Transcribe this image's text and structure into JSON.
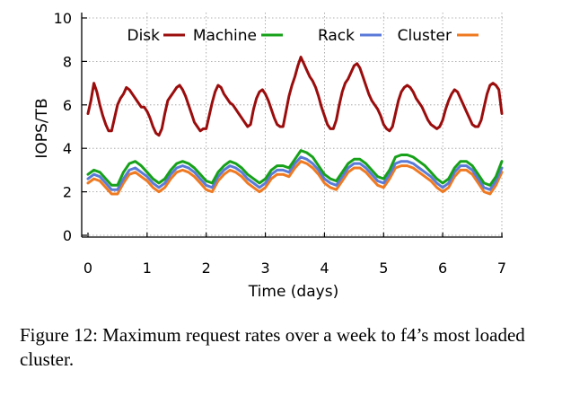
{
  "chart_data": {
    "type": "line",
    "xlabel": "Time (days)",
    "ylabel": "IOPS/TB",
    "xlim": [
      0,
      7
    ],
    "ylim": [
      0,
      10
    ],
    "x_ticks": [
      0,
      1,
      2,
      3,
      4,
      5,
      6,
      7
    ],
    "y_ticks": [
      0,
      2,
      4,
      6,
      8,
      10
    ],
    "grid": true,
    "legend_position": "top",
    "series": [
      {
        "name": "Disk",
        "color": "#9b0d0d",
        "x": [
          0,
          0.05,
          0.1,
          0.15,
          0.2,
          0.25,
          0.3,
          0.35,
          0.4,
          0.45,
          0.5,
          0.55,
          0.6,
          0.65,
          0.7,
          0.75,
          0.8,
          0.85,
          0.9,
          0.95,
          1,
          1.05,
          1.1,
          1.15,
          1.2,
          1.25,
          1.3,
          1.35,
          1.4,
          1.45,
          1.5,
          1.55,
          1.6,
          1.65,
          1.7,
          1.75,
          1.8,
          1.85,
          1.9,
          1.95,
          2,
          2.05,
          2.1,
          2.15,
          2.2,
          2.25,
          2.3,
          2.35,
          2.4,
          2.45,
          2.5,
          2.55,
          2.6,
          2.65,
          2.7,
          2.75,
          2.8,
          2.85,
          2.9,
          2.95,
          3,
          3.05,
          3.1,
          3.15,
          3.2,
          3.25,
          3.3,
          3.35,
          3.4,
          3.45,
          3.5,
          3.55,
          3.6,
          3.65,
          3.7,
          3.75,
          3.8,
          3.85,
          3.9,
          3.95,
          4,
          4.05,
          4.1,
          4.15,
          4.2,
          4.25,
          4.3,
          4.35,
          4.4,
          4.45,
          4.5,
          4.55,
          4.6,
          4.65,
          4.7,
          4.75,
          4.8,
          4.85,
          4.9,
          4.95,
          5,
          5.05,
          5.1,
          5.15,
          5.2,
          5.25,
          5.3,
          5.35,
          5.4,
          5.45,
          5.5,
          5.55,
          5.6,
          5.65,
          5.7,
          5.75,
          5.8,
          5.85,
          5.9,
          5.95,
          6,
          6.05,
          6.1,
          6.15,
          6.2,
          6.25,
          6.3,
          6.35,
          6.4,
          6.45,
          6.5,
          6.55,
          6.6,
          6.65,
          6.7,
          6.75,
          6.8,
          6.85,
          6.9,
          6.95,
          7
        ],
        "y": [
          5.6,
          6.2,
          7.0,
          6.6,
          6.0,
          5.5,
          5.1,
          4.8,
          4.8,
          5.4,
          6.0,
          6.3,
          6.5,
          6.8,
          6.7,
          6.5,
          6.3,
          6.1,
          5.9,
          5.9,
          5.7,
          5.4,
          5.0,
          4.7,
          4.6,
          4.9,
          5.6,
          6.2,
          6.4,
          6.6,
          6.8,
          6.9,
          6.7,
          6.4,
          6.0,
          5.6,
          5.2,
          5.0,
          4.8,
          4.9,
          4.9,
          5.5,
          6.1,
          6.6,
          6.9,
          6.8,
          6.5,
          6.3,
          6.1,
          6.0,
          5.8,
          5.6,
          5.4,
          5.2,
          5.0,
          5.1,
          5.8,
          6.3,
          6.6,
          6.7,
          6.5,
          6.2,
          5.8,
          5.4,
          5.1,
          5.0,
          5.0,
          5.7,
          6.4,
          6.9,
          7.3,
          7.8,
          8.2,
          7.9,
          7.6,
          7.3,
          7.1,
          6.8,
          6.4,
          5.9,
          5.5,
          5.1,
          4.9,
          4.9,
          5.3,
          6.0,
          6.6,
          7.0,
          7.2,
          7.5,
          7.8,
          7.9,
          7.7,
          7.3,
          6.9,
          6.5,
          6.2,
          6.0,
          5.8,
          5.5,
          5.1,
          4.9,
          4.8,
          5.0,
          5.6,
          6.2,
          6.6,
          6.8,
          6.9,
          6.8,
          6.6,
          6.3,
          6.1,
          5.9,
          5.6,
          5.3,
          5.1,
          5.0,
          4.9,
          5.0,
          5.3,
          5.8,
          6.2,
          6.5,
          6.7,
          6.6,
          6.3,
          6.0,
          5.7,
          5.4,
          5.1,
          5.0,
          5.0,
          5.3,
          5.9,
          6.5,
          6.9,
          7.0,
          6.9,
          6.7,
          5.6
        ]
      },
      {
        "name": "Machine",
        "color": "#17a11a",
        "x": [
          0,
          0.1,
          0.2,
          0.3,
          0.4,
          0.5,
          0.6,
          0.7,
          0.8,
          0.9,
          1,
          1.1,
          1.2,
          1.3,
          1.4,
          1.5,
          1.6,
          1.7,
          1.8,
          1.9,
          2,
          2.1,
          2.2,
          2.3,
          2.4,
          2.5,
          2.6,
          2.7,
          2.8,
          2.9,
          3,
          3.1,
          3.2,
          3.3,
          3.4,
          3.5,
          3.6,
          3.7,
          3.8,
          3.9,
          4,
          4.1,
          4.2,
          4.3,
          4.4,
          4.5,
          4.6,
          4.7,
          4.8,
          4.9,
          5,
          5.1,
          5.2,
          5.3,
          5.4,
          5.5,
          5.6,
          5.7,
          5.8,
          5.9,
          6,
          6.1,
          6.2,
          6.3,
          6.4,
          6.5,
          6.6,
          6.7,
          6.8,
          6.9,
          7
        ],
        "y": [
          2.8,
          3.0,
          2.9,
          2.6,
          2.3,
          2.3,
          2.9,
          3.3,
          3.4,
          3.2,
          2.9,
          2.6,
          2.4,
          2.6,
          3.0,
          3.3,
          3.4,
          3.3,
          3.1,
          2.8,
          2.5,
          2.4,
          2.9,
          3.2,
          3.4,
          3.3,
          3.1,
          2.8,
          2.6,
          2.4,
          2.6,
          3.0,
          3.2,
          3.2,
          3.1,
          3.5,
          3.9,
          3.8,
          3.6,
          3.2,
          2.8,
          2.6,
          2.5,
          2.9,
          3.3,
          3.5,
          3.5,
          3.3,
          3.0,
          2.7,
          2.6,
          3.0,
          3.6,
          3.7,
          3.7,
          3.6,
          3.4,
          3.2,
          2.9,
          2.6,
          2.4,
          2.6,
          3.1,
          3.4,
          3.4,
          3.2,
          2.8,
          2.4,
          2.3,
          2.7,
          3.4
        ]
      },
      {
        "name": "Rack",
        "color": "#5a7ad8",
        "x": [
          0,
          0.1,
          0.2,
          0.3,
          0.4,
          0.5,
          0.6,
          0.7,
          0.8,
          0.9,
          1,
          1.1,
          1.2,
          1.3,
          1.4,
          1.5,
          1.6,
          1.7,
          1.8,
          1.9,
          2,
          2.1,
          2.2,
          2.3,
          2.4,
          2.5,
          2.6,
          2.7,
          2.8,
          2.9,
          3,
          3.1,
          3.2,
          3.3,
          3.4,
          3.5,
          3.6,
          3.7,
          3.8,
          3.9,
          4,
          4.1,
          4.2,
          4.3,
          4.4,
          4.5,
          4.6,
          4.7,
          4.8,
          4.9,
          5,
          5.1,
          5.2,
          5.3,
          5.4,
          5.5,
          5.6,
          5.7,
          5.8,
          5.9,
          6,
          6.1,
          6.2,
          6.3,
          6.4,
          6.5,
          6.6,
          6.7,
          6.8,
          6.9,
          7
        ],
        "y": [
          2.6,
          2.8,
          2.7,
          2.4,
          2.1,
          2.1,
          2.6,
          3.0,
          3.1,
          2.9,
          2.7,
          2.4,
          2.2,
          2.4,
          2.8,
          3.1,
          3.2,
          3.1,
          2.9,
          2.6,
          2.3,
          2.2,
          2.7,
          3.0,
          3.2,
          3.1,
          2.9,
          2.6,
          2.4,
          2.2,
          2.4,
          2.8,
          3.0,
          3.0,
          2.9,
          3.3,
          3.6,
          3.5,
          3.3,
          3.0,
          2.6,
          2.4,
          2.3,
          2.7,
          3.1,
          3.3,
          3.3,
          3.1,
          2.8,
          2.5,
          2.4,
          2.8,
          3.3,
          3.4,
          3.4,
          3.3,
          3.1,
          2.9,
          2.7,
          2.4,
          2.2,
          2.4,
          2.9,
          3.2,
          3.2,
          3.0,
          2.6,
          2.2,
          2.1,
          2.5,
          3.1
        ]
      },
      {
        "name": "Cluster",
        "color": "#ef7a21",
        "x": [
          0,
          0.1,
          0.2,
          0.3,
          0.4,
          0.5,
          0.6,
          0.7,
          0.8,
          0.9,
          1,
          1.1,
          1.2,
          1.3,
          1.4,
          1.5,
          1.6,
          1.7,
          1.8,
          1.9,
          2,
          2.1,
          2.2,
          2.3,
          2.4,
          2.5,
          2.6,
          2.7,
          2.8,
          2.9,
          3,
          3.1,
          3.2,
          3.3,
          3.4,
          3.5,
          3.6,
          3.7,
          3.8,
          3.9,
          4,
          4.1,
          4.2,
          4.3,
          4.4,
          4.5,
          4.6,
          4.7,
          4.8,
          4.9,
          5,
          5.1,
          5.2,
          5.3,
          5.4,
          5.5,
          5.6,
          5.7,
          5.8,
          5.9,
          6,
          6.1,
          6.2,
          6.3,
          6.4,
          6.5,
          6.6,
          6.7,
          6.8,
          6.9,
          7
        ],
        "y": [
          2.4,
          2.6,
          2.5,
          2.2,
          1.9,
          1.9,
          2.4,
          2.8,
          2.9,
          2.7,
          2.5,
          2.2,
          2.0,
          2.2,
          2.6,
          2.9,
          3.0,
          2.9,
          2.7,
          2.4,
          2.1,
          2.0,
          2.5,
          2.8,
          3.0,
          2.9,
          2.7,
          2.4,
          2.2,
          2.0,
          2.2,
          2.6,
          2.8,
          2.8,
          2.7,
          3.1,
          3.4,
          3.3,
          3.1,
          2.8,
          2.4,
          2.2,
          2.1,
          2.5,
          2.9,
          3.1,
          3.1,
          2.9,
          2.6,
          2.3,
          2.2,
          2.6,
          3.1,
          3.2,
          3.2,
          3.1,
          2.9,
          2.7,
          2.5,
          2.2,
          2.0,
          2.2,
          2.7,
          3.0,
          3.0,
          2.8,
          2.4,
          2.0,
          1.9,
          2.3,
          2.9
        ]
      }
    ]
  },
  "caption": "Figure 12: Maximum request rates over a week to f4’s most loaded cluster."
}
